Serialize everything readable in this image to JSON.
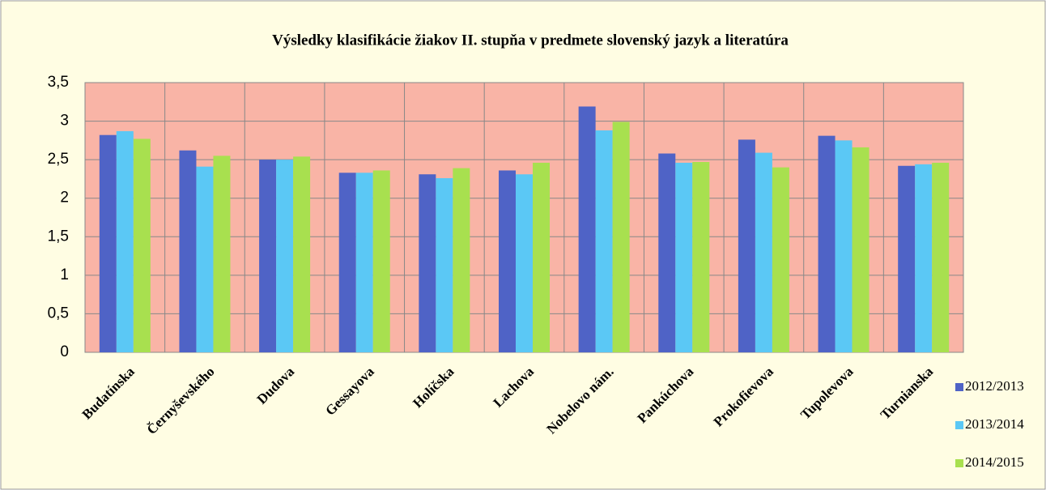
{
  "chart_data": {
    "type": "bar",
    "title": "Výsledky klasifikácie žiakov II. stupňa v predmete slovenský jazyk a literatúra",
    "categories": [
      "Budatínska",
      "Černyševského",
      "Dudova",
      "Gessayova",
      "Holíčska",
      "Lachova",
      "Nobelovo nám.",
      "Pankúchova",
      "Prokofievova",
      "Tupolevova",
      "Turnianska"
    ],
    "series": [
      {
        "name": "2012/2013",
        "color": "#4f63c6",
        "values": [
          2.82,
          2.62,
          2.5,
          2.33,
          2.31,
          2.36,
          3.19,
          2.58,
          2.76,
          2.81,
          2.42
        ]
      },
      {
        "name": "2013/2014",
        "color": "#5bc8f5",
        "values": [
          2.87,
          2.41,
          2.5,
          2.33,
          2.26,
          2.31,
          2.88,
          2.46,
          2.59,
          2.75,
          2.44
        ]
      },
      {
        "name": "2014/2015",
        "color": "#a8e04f",
        "values": [
          2.77,
          2.55,
          2.54,
          2.36,
          2.39,
          2.46,
          2.99,
          2.47,
          2.4,
          2.66,
          2.46
        ]
      }
    ],
    "ylim": [
      0,
      3.5
    ],
    "yticks": [
      0,
      {
        "value": 0.5,
        "label": "0,5"
      },
      1,
      {
        "value": 1.5,
        "label": "1,5"
      },
      2,
      {
        "value": 2.5,
        "label": "2,5"
      },
      3,
      {
        "value": 3.5,
        "label": "3,5"
      }
    ],
    "grid": true
  }
}
